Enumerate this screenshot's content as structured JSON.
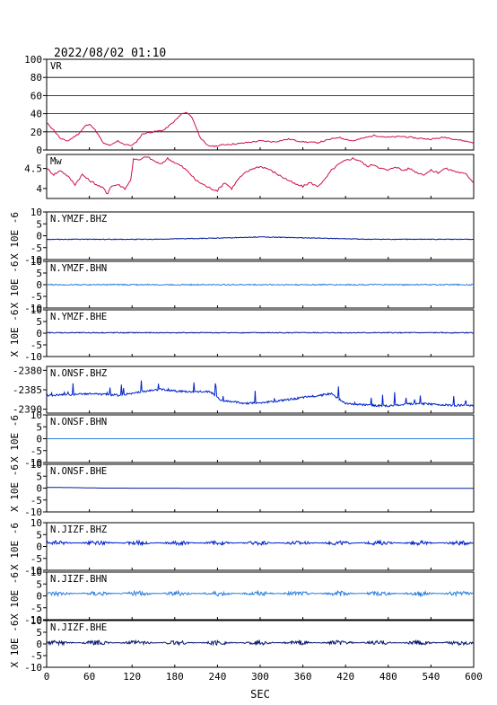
{
  "header": {
    "timestamp": "2022/08/02 01:10"
  },
  "chart_data": {
    "type": "line",
    "xlabel": "SEC",
    "xlim": [
      0,
      600
    ],
    "xticks": [
      0,
      60,
      120,
      180,
      240,
      300,
      360,
      420,
      480,
      540,
      600
    ],
    "grid": true,
    "panels": [
      {
        "name": "VR",
        "color": "#cc1144",
        "ylim": [
          0,
          100
        ],
        "yticks": [
          0,
          20,
          40,
          60,
          80,
          100
        ],
        "x": [
          0,
          10,
          20,
          30,
          45,
          55,
          62,
          70,
          80,
          90,
          100,
          110,
          120,
          125,
          135,
          150,
          165,
          180,
          190,
          198,
          205,
          215,
          225,
          235,
          250,
          270,
          290,
          300,
          320,
          340,
          360,
          380,
          400,
          410,
          430,
          460,
          480,
          500,
          520,
          540,
          560,
          580,
          600
        ],
        "values": [
          30,
          22,
          12,
          10,
          18,
          27,
          28,
          20,
          7,
          5,
          10,
          6,
          5,
          8,
          18,
          20,
          22,
          32,
          40,
          41,
          35,
          15,
          5,
          4,
          6,
          7,
          9,
          10,
          9,
          12,
          9,
          8,
          12,
          14,
          10,
          16,
          14,
          15,
          13,
          12,
          14,
          11,
          8
        ]
      },
      {
        "name": "Mw",
        "color": "#cc1144",
        "ylim": [
          3.75,
          4.85
        ],
        "yticks": [
          4.0,
          4.5
        ],
        "x": [
          0,
          10,
          20,
          30,
          40,
          50,
          60,
          70,
          80,
          85,
          90,
          100,
          110,
          118,
          122,
          130,
          140,
          150,
          160,
          170,
          180,
          190,
          200,
          210,
          220,
          230,
          240,
          250,
          260,
          270,
          280,
          290,
          300,
          310,
          320,
          330,
          340,
          350,
          360,
          370,
          380,
          390,
          400,
          410,
          420,
          430,
          440,
          450,
          460,
          470,
          480,
          490,
          500,
          510,
          520,
          530,
          540,
          550,
          560,
          570,
          580,
          590,
          600
        ],
        "values": [
          4.5,
          4.35,
          4.45,
          4.3,
          4.1,
          4.35,
          4.2,
          4.1,
          4.0,
          3.85,
          4.05,
          4.1,
          4.0,
          4.2,
          4.75,
          4.7,
          4.8,
          4.7,
          4.6,
          4.75,
          4.65,
          4.55,
          4.4,
          4.2,
          4.1,
          4.0,
          3.95,
          4.15,
          4.0,
          4.25,
          4.4,
          4.5,
          4.55,
          4.5,
          4.4,
          4.3,
          4.2,
          4.1,
          4.05,
          4.15,
          4.05,
          4.2,
          4.45,
          4.6,
          4.7,
          4.75,
          4.7,
          4.55,
          4.6,
          4.5,
          4.45,
          4.55,
          4.45,
          4.5,
          4.4,
          4.35,
          4.45,
          4.4,
          4.5,
          4.45,
          4.4,
          4.35,
          4.15
        ]
      },
      {
        "name": "N.YMZF.BHZ",
        "color": "#001a99",
        "ylabel": "X 10E -6",
        "ylim": [
          -10,
          10
        ],
        "yticks": [
          -10,
          -5,
          0,
          5,
          10
        ],
        "x": [
          0,
          150,
          240,
          300,
          380,
          450,
          600
        ],
        "values": [
          -1.5,
          -1.5,
          -1.0,
          -0.5,
          -1.0,
          -1.5,
          -1.5
        ]
      },
      {
        "name": "N.YMZF.BHN",
        "color": "#2a7fdd",
        "ylabel": "X 10E -6",
        "ylim": [
          -10,
          10
        ],
        "yticks": [
          -10,
          -5,
          0,
          5,
          10
        ],
        "x": [
          0,
          600
        ],
        "values": [
          0,
          0
        ]
      },
      {
        "name": "N.YMZF.BHE",
        "color": "#001a99",
        "ylabel": "X 10E -6",
        "ylim": [
          -10,
          10
        ],
        "yticks": [
          -10,
          -5,
          0,
          5,
          10
        ],
        "x": [
          0,
          600
        ],
        "values": [
          0.2,
          0.2
        ]
      },
      {
        "name": "N.ONSF.BHZ",
        "color": "#0022cc",
        "ylim": [
          -2391,
          -2379
        ],
        "yticks": [
          -2390,
          -2385,
          -2380
        ],
        "x": [
          0,
          20,
          40,
          60,
          80,
          100,
          120,
          130,
          150,
          160,
          180,
          200,
          230,
          245,
          260,
          280,
          300,
          320,
          340,
          360,
          380,
          400,
          420,
          440,
          460,
          480,
          500,
          520,
          540,
          560,
          580,
          600
        ],
        "values": [
          -2386.5,
          -2386.3,
          -2386.2,
          -2386.0,
          -2386.2,
          -2386.4,
          -2386.0,
          -2385.5,
          -2385.2,
          -2384.8,
          -2385.3,
          -2385.5,
          -2385.5,
          -2387.8,
          -2388.0,
          -2388.5,
          -2388.3,
          -2388.0,
          -2387.5,
          -2387.0,
          -2386.5,
          -2386.0,
          -2388.5,
          -2388.8,
          -2389.0,
          -2389.2,
          -2388.8,
          -2388.5,
          -2388.7,
          -2388.9,
          -2389.0,
          -2389.1
        ]
      },
      {
        "name": "N.ONSF.BHN",
        "color": "#2a7fdd",
        "ylabel": "X 10E -6",
        "ylim": [
          -10,
          10
        ],
        "yticks": [
          -10,
          -5,
          0,
          5,
          10
        ],
        "x": [
          0,
          600
        ],
        "values": [
          0,
          0
        ]
      },
      {
        "name": "N.ONSF.BHE",
        "color": "#001a99",
        "ylabel": "X 10E -6",
        "ylim": [
          -10,
          10
        ],
        "yticks": [
          -10,
          -5,
          0,
          5,
          10
        ],
        "x": [
          0,
          40,
          80,
          270,
          600
        ],
        "values": [
          0.3,
          0.2,
          0.0,
          -0.1,
          -0.1
        ]
      },
      {
        "name": "N.JIZF.BHZ",
        "color": "#0022cc",
        "ylabel": "X 10E -6",
        "ylim": [
          -10,
          10
        ],
        "yticks": [
          -10,
          -5,
          0,
          5,
          10
        ],
        "x": [
          0,
          600
        ],
        "values": [
          1.5,
          1.5
        ]
      },
      {
        "name": "N.JIZF.BHN",
        "color": "#2a7fdd",
        "ylabel": "X 10E -6",
        "ylim": [
          -10,
          10
        ],
        "yticks": [
          -10,
          -5,
          0,
          5,
          10
        ],
        "x": [
          0,
          600
        ],
        "values": [
          1.0,
          1.0
        ]
      },
      {
        "name": "N.JIZF.BHE",
        "color": "#0a1a6e",
        "ylabel": "X 10E -6",
        "ylim": [
          -10,
          10
        ],
        "yticks": [
          -10,
          -5,
          0,
          5,
          10
        ],
        "x": [
          0,
          600
        ],
        "values": [
          0.5,
          0.5
        ]
      }
    ]
  }
}
